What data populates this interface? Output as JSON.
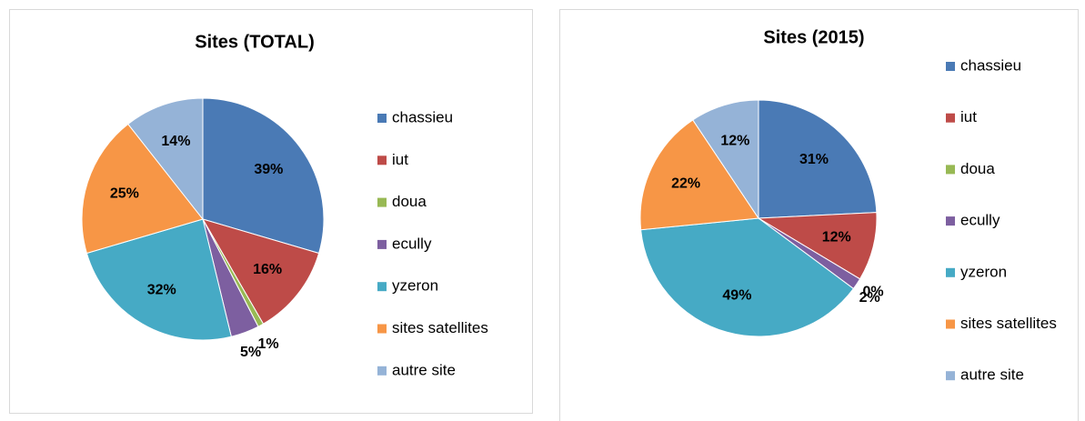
{
  "chart_data": [
    {
      "type": "pie",
      "title": "Sites (TOTAL)",
      "categories": [
        "chassieu",
        "iut",
        "doua",
        "ecully",
        "yzeron",
        "sites satellites",
        "autre site"
      ],
      "values": [
        39,
        16,
        1,
        5,
        32,
        25,
        14
      ],
      "value_labels": [
        "39%",
        "16%",
        "1%",
        "5%",
        "32%",
        "25%",
        "14%"
      ],
      "colors": [
        "#4a7ab5",
        "#be4b48",
        "#98b954",
        "#7d5fa0",
        "#46aac5",
        "#f79646",
        "#95b3d7"
      ],
      "legend": "right"
    },
    {
      "type": "pie",
      "title": "Sites (2015)",
      "categories": [
        "chassieu",
        "iut",
        "doua",
        "ecully",
        "yzeron",
        "sites satellites",
        "autre site"
      ],
      "values": [
        31,
        12,
        0,
        2,
        49,
        22,
        12
      ],
      "value_labels": [
        "31%",
        "12%",
        "0%",
        "2%",
        "49%",
        "22%",
        "12%"
      ],
      "colors": [
        "#4a7ab5",
        "#be4b48",
        "#98b954",
        "#7d5fa0",
        "#46aac5",
        "#f79646",
        "#95b3d7"
      ],
      "legend": "right"
    }
  ]
}
